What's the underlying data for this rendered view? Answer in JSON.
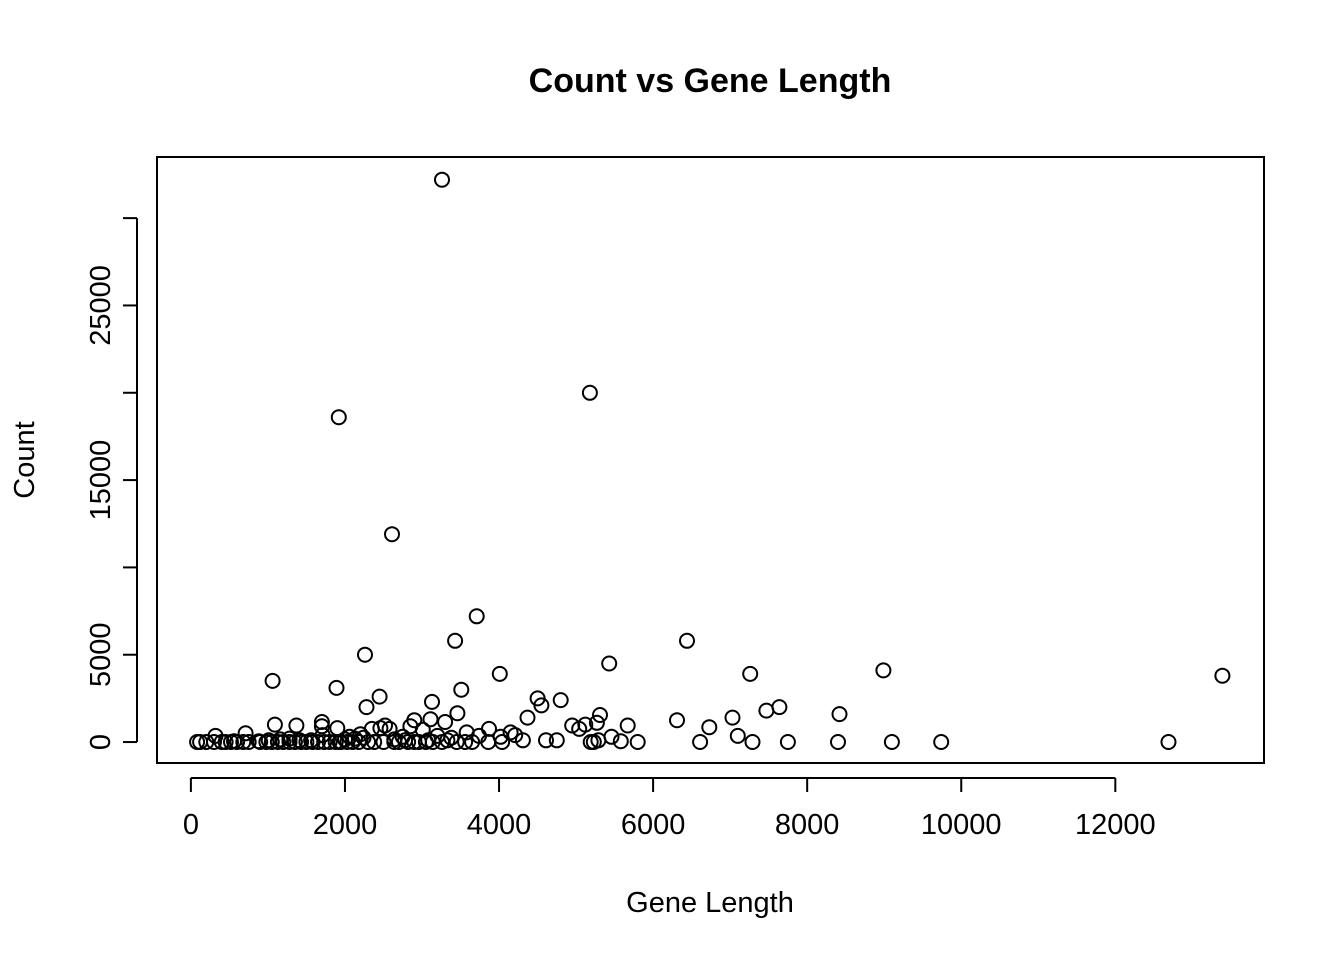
{
  "chart_data": {
    "type": "scatter",
    "title": "Count vs Gene Length",
    "xlabel": "Gene Length",
    "ylabel": "Count",
    "xlim": [
      -440,
      13930
    ],
    "ylim": [
      -1200,
      33500
    ],
    "x_ticks": [
      0,
      2000,
      4000,
      6000,
      8000,
      10000,
      12000
    ],
    "x_tick_labels": [
      "0",
      "2000",
      "4000",
      "6000",
      "8000",
      "10000",
      "12000"
    ],
    "y_ticks": [
      0,
      5000,
      10000,
      15000,
      20000,
      25000,
      30000
    ],
    "y_tick_labels": [
      "0",
      "5000",
      "",
      "15000",
      "",
      "25000",
      ""
    ],
    "grid": false,
    "legend": "none",
    "point_color": "#000000",
    "points": [
      [
        3260,
        32200
      ],
      [
        5180,
        20000
      ],
      [
        1920,
        18600
      ],
      [
        2610,
        11900
      ],
      [
        3710,
        7200
      ],
      [
        3430,
        5800
      ],
      [
        6440,
        5800
      ],
      [
        2260,
        5000
      ],
      [
        5430,
        4500
      ],
      [
        4010,
        3900
      ],
      [
        7260,
        3900
      ],
      [
        8990,
        4100
      ],
      [
        13390,
        3800
      ],
      [
        1060,
        3500
      ],
      [
        1890,
        3100
      ],
      [
        3510,
        3000
      ],
      [
        2450,
        2600
      ],
      [
        4500,
        2500
      ],
      [
        4800,
        2400
      ],
      [
        3130,
        2300
      ],
      [
        4550,
        2100
      ],
      [
        2280,
        2000
      ],
      [
        7640,
        2000
      ],
      [
        7470,
        1800
      ],
      [
        8420,
        1600
      ],
      [
        3460,
        1650
      ],
      [
        5310,
        1550
      ],
      [
        4370,
        1400
      ],
      [
        6310,
        1250
      ],
      [
        7030,
        1400
      ],
      [
        3300,
        1150
      ],
      [
        3110,
        1300
      ],
      [
        2900,
        1250
      ],
      [
        1700,
        1150
      ],
      [
        1090,
        1000
      ],
      [
        1370,
        950
      ],
      [
        5670,
        950
      ],
      [
        4950,
        950
      ],
      [
        5270,
        1100
      ],
      [
        5120,
        1000
      ],
      [
        5040,
        750
      ],
      [
        6730,
        850
      ],
      [
        2520,
        950
      ],
      [
        2850,
        900
      ],
      [
        3010,
        700
      ],
      [
        3870,
        750
      ],
      [
        4150,
        550
      ],
      [
        4210,
        400
      ],
      [
        3580,
        550
      ],
      [
        3740,
        350
      ],
      [
        4020,
        300
      ],
      [
        5460,
        300
      ],
      [
        7100,
        350
      ],
      [
        1900,
        800
      ],
      [
        1700,
        900
      ],
      [
        2350,
        750
      ],
      [
        2580,
        750
      ],
      [
        2460,
        800
      ],
      [
        2200,
        450
      ],
      [
        2060,
        300
      ],
      [
        710,
        500
      ],
      [
        320,
        350
      ],
      [
        1710,
        400
      ],
      [
        2750,
        300
      ],
      [
        3200,
        350
      ],
      [
        3380,
        250
      ],
      [
        4310,
        100
      ],
      [
        4610,
        100
      ],
      [
        4750,
        100
      ],
      [
        5230,
        0
      ],
      [
        5580,
        50
      ],
      [
        5800,
        0
      ],
      [
        6610,
        0
      ],
      [
        7290,
        0
      ],
      [
        7750,
        0
      ],
      [
        8400,
        0
      ],
      [
        9100,
        0
      ],
      [
        9740,
        0
      ],
      [
        12690,
        0
      ],
      [
        4040,
        0
      ],
      [
        3860,
        0
      ],
      [
        3650,
        0
      ],
      [
        3450,
        0
      ],
      [
        3260,
        0
      ],
      [
        3050,
        0
      ],
      [
        2900,
        0
      ],
      [
        2700,
        0
      ],
      [
        2500,
        0
      ],
      [
        2300,
        0
      ],
      [
        2100,
        0
      ],
      [
        1950,
        0
      ],
      [
        1800,
        0
      ],
      [
        1650,
        0
      ],
      [
        1500,
        0
      ],
      [
        1350,
        0
      ],
      [
        1200,
        0
      ],
      [
        1050,
        0
      ],
      [
        900,
        0
      ],
      [
        750,
        0
      ],
      [
        600,
        0
      ],
      [
        450,
        0
      ],
      [
        300,
        0
      ],
      [
        200,
        0
      ],
      [
        120,
        0
      ],
      [
        80,
        0
      ],
      [
        520,
        0
      ],
      [
        680,
        0
      ],
      [
        980,
        0
      ],
      [
        1130,
        0
      ],
      [
        1280,
        0
      ],
      [
        1430,
        0
      ],
      [
        1580,
        0
      ],
      [
        1730,
        0
      ],
      [
        1880,
        0
      ],
      [
        2030,
        0
      ],
      [
        2180,
        0
      ],
      [
        2380,
        0
      ],
      [
        2640,
        0
      ],
      [
        2820,
        0
      ],
      [
        2960,
        0
      ],
      [
        3140,
        0
      ],
      [
        3560,
        0
      ],
      [
        5190,
        0
      ],
      [
        5290,
        100
      ],
      [
        1160,
        150
      ],
      [
        1410,
        100
      ],
      [
        1560,
        100
      ],
      [
        2000,
        150
      ],
      [
        2130,
        200
      ],
      [
        2240,
        250
      ],
      [
        2640,
        150
      ],
      [
        2780,
        100
      ],
      [
        3080,
        100
      ],
      [
        3330,
        100
      ],
      [
        1010,
        100
      ],
      [
        1280,
        200
      ],
      [
        880,
        50
      ],
      [
        560,
        50
      ],
      [
        400,
        0
      ],
      [
        1930,
        0
      ]
    ]
  }
}
